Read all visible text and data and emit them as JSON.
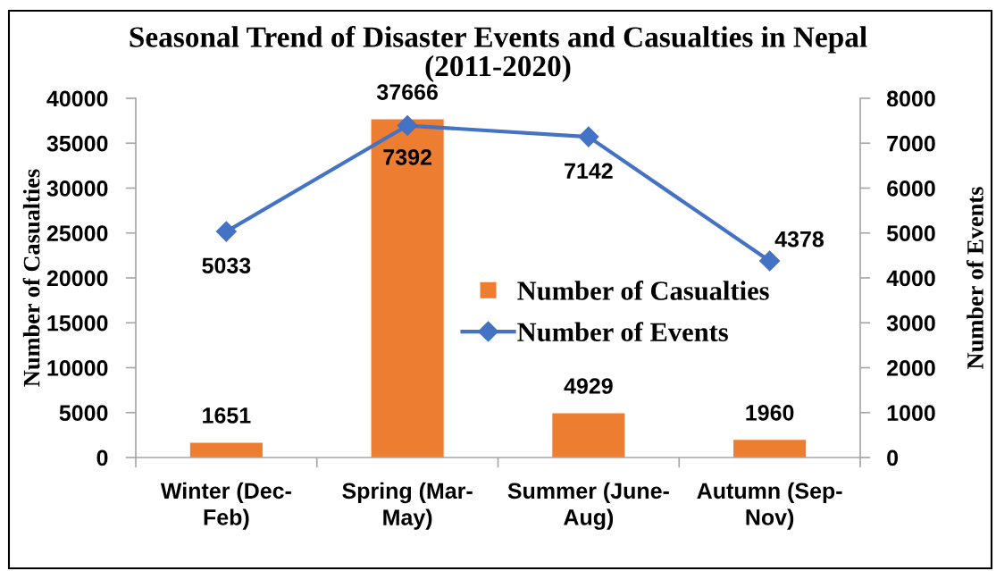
{
  "chart_data": {
    "type": "bar",
    "title": "Seasonal Trend of Disaster Events and Casualties in Nepal\n(2011-2020)",
    "categories": [
      "Winter (Dec-\nFeb)",
      "Spring (Mar-\nMay)",
      "Summer (June-\nAug)",
      "Autumn (Sep-\nNov)"
    ],
    "ylabel": "Number of Casualties",
    "y2label": "Number of Events",
    "series": [
      {
        "name": "Number of Casualties",
        "color": "#ed7d31",
        "values": [
          1651,
          37666,
          4929,
          1960
        ]
      },
      {
        "name": "Number of Events",
        "type": "line",
        "axis": "y2",
        "color": "#4472c4",
        "marker": "diamond",
        "line_style": "solid",
        "values": [
          5033,
          7392,
          7142,
          4378
        ]
      }
    ],
    "ylim": [
      0,
      40000
    ],
    "yticks": [
      0,
      5000,
      10000,
      15000,
      20000,
      25000,
      30000,
      35000,
      40000
    ],
    "y2lim": [
      0,
      8000
    ],
    "y2ticks": [
      0,
      1000,
      2000,
      3000,
      4000,
      5000,
      6000,
      7000,
      8000
    ],
    "data_labels": true,
    "legend": "center right",
    "grid": false
  }
}
